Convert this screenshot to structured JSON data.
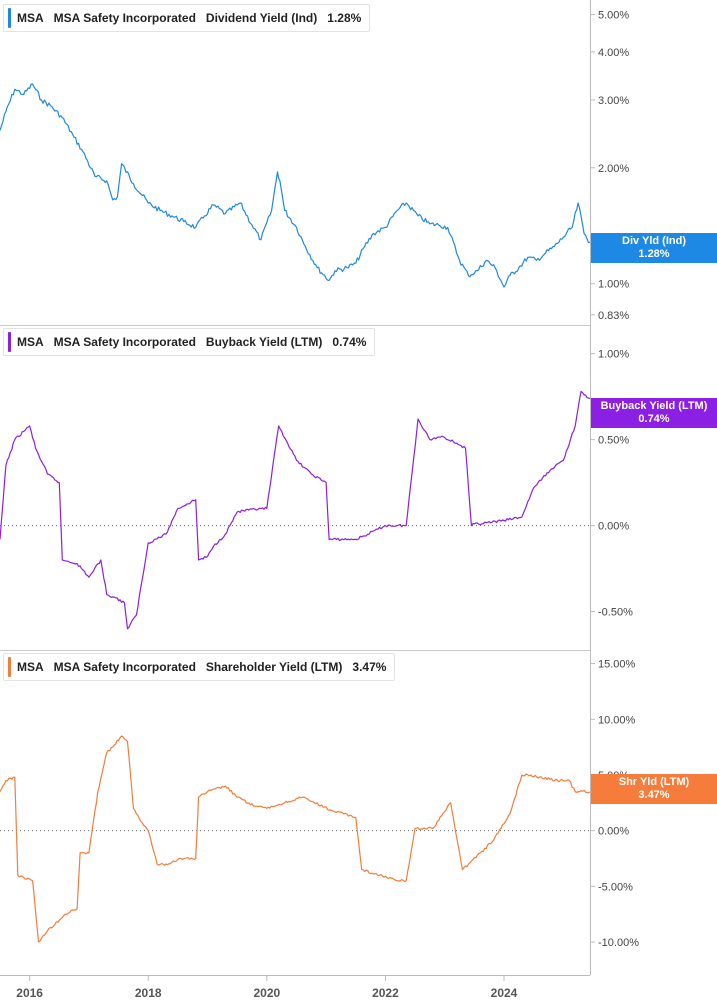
{
  "chart_data": [
    {
      "type": "line",
      "scale": "log",
      "ticker": "MSA",
      "company": "MSA Safety Incorporated",
      "metric": "Dividend Yield (Ind)",
      "latest": "1.28%",
      "tag_label": "Div Yld (Ind)",
      "tag_value": "1.28%",
      "color": "#1e88e5",
      "ylim": [
        0.8,
        5.2
      ],
      "yticks": [
        0.83,
        1.0,
        2.0,
        3.0,
        4.0,
        5.0
      ],
      "ytick_labels": [
        "0.83%",
        "1.00%",
        "2.00%",
        "3.00%",
        "4.00%",
        "5.00%"
      ],
      "x": [
        2015.5,
        2015.6,
        2015.75,
        2015.9,
        2016.05,
        2016.2,
        2016.35,
        2016.55,
        2016.75,
        2016.9,
        2017.1,
        2017.3,
        2017.4,
        2017.48,
        2017.55,
        2017.75,
        2018.0,
        2018.2,
        2018.4,
        2018.6,
        2018.8,
        2018.95,
        2019.1,
        2019.3,
        2019.55,
        2019.75,
        2019.9,
        2020.08,
        2020.18,
        2020.22,
        2020.3,
        2020.5,
        2020.65,
        2020.85,
        2021.05,
        2021.15,
        2021.35,
        2021.5,
        2021.65,
        2021.8,
        2022.0,
        2022.2,
        2022.35,
        2022.55,
        2022.75,
        2022.9,
        2023.05,
        2023.25,
        2023.4,
        2023.55,
        2023.7,
        2023.85,
        2024.0,
        2024.1,
        2024.25,
        2024.4,
        2024.55,
        2024.7,
        2024.85,
        2025.0,
        2025.15,
        2025.25,
        2025.35,
        2025.45
      ],
      "y": [
        2.5,
        2.8,
        3.2,
        3.1,
        3.3,
        3.0,
        2.9,
        2.7,
        2.4,
        2.2,
        1.9,
        1.85,
        1.65,
        1.68,
        2.05,
        1.82,
        1.62,
        1.55,
        1.5,
        1.45,
        1.4,
        1.5,
        1.6,
        1.52,
        1.62,
        1.42,
        1.3,
        1.55,
        1.95,
        1.85,
        1.55,
        1.4,
        1.25,
        1.1,
        1.02,
        1.08,
        1.1,
        1.13,
        1.25,
        1.35,
        1.4,
        1.55,
        1.62,
        1.5,
        1.43,
        1.42,
        1.4,
        1.15,
        1.05,
        1.08,
        1.15,
        1.1,
        0.98,
        1.05,
        1.1,
        1.17,
        1.15,
        1.2,
        1.25,
        1.32,
        1.4,
        1.62,
        1.35,
        1.28
      ]
    },
    {
      "type": "line",
      "scale": "linear",
      "ticker": "MSA",
      "company": "MSA Safety Incorporated",
      "metric": "Buyback Yield (LTM)",
      "latest": "0.74%",
      "tag_label": "Buyback Yield (LTM)",
      "tag_value": "0.74%",
      "color": "#8b1fe3",
      "ylim": [
        -0.7,
        1.12
      ],
      "yticks": [
        -0.5,
        0.0,
        0.5,
        1.0
      ],
      "ytick_labels": [
        "-0.50%",
        "0.00%",
        "0.50%",
        "1.00%"
      ],
      "zero_line": true,
      "x": [
        2015.5,
        2015.6,
        2015.75,
        2016.0,
        2016.1,
        2016.3,
        2016.5,
        2016.55,
        2016.8,
        2017.0,
        2017.2,
        2017.3,
        2017.45,
        2017.6,
        2017.65,
        2017.8,
        2018.0,
        2018.3,
        2018.5,
        2018.8,
        2018.85,
        2019.0,
        2019.1,
        2019.3,
        2019.5,
        2019.7,
        2020.0,
        2020.2,
        2020.35,
        2020.5,
        2020.75,
        2021.0,
        2021.05,
        2021.5,
        2021.7,
        2022.0,
        2022.35,
        2022.55,
        2022.75,
        2022.95,
        2023.2,
        2023.35,
        2023.45,
        2023.5,
        2023.8,
        2024.0,
        2024.3,
        2024.5,
        2024.8,
        2025.0,
        2025.2,
        2025.3,
        2025.35,
        2025.45
      ],
      "y": [
        -0.08,
        0.35,
        0.5,
        0.58,
        0.45,
        0.3,
        0.25,
        -0.2,
        -0.22,
        -0.3,
        -0.2,
        -0.4,
        -0.42,
        -0.45,
        -0.6,
        -0.52,
        -0.1,
        -0.05,
        0.1,
        0.15,
        -0.2,
        -0.18,
        -0.12,
        -0.05,
        0.08,
        0.09,
        0.1,
        0.58,
        0.48,
        0.38,
        0.3,
        0.25,
        -0.08,
        -0.08,
        -0.05,
        0.0,
        0.0,
        0.62,
        0.5,
        0.52,
        0.48,
        0.45,
        0.0,
        0.01,
        0.02,
        0.03,
        0.05,
        0.22,
        0.33,
        0.38,
        0.58,
        0.78,
        0.76,
        0.74
      ]
    },
    {
      "type": "line",
      "scale": "linear",
      "ticker": "MSA",
      "company": "MSA Safety Incorporated",
      "metric": "Shareholder Yield (LTM)",
      "latest": "3.47%",
      "tag_label": "Shr Yld (LTM)",
      "tag_value": "3.47%",
      "color": "#f57c3a",
      "ylim": [
        -12.6,
        15.5
      ],
      "yticks": [
        -10,
        -5,
        0,
        5,
        10,
        15
      ],
      "ytick_labels": [
        "-10.00%",
        "-5.00%",
        "0.00%",
        "5.00%",
        "10.00%",
        "15.00%"
      ],
      "zero_line": true,
      "x": [
        2015.5,
        2015.6,
        2015.75,
        2015.8,
        2016.05,
        2016.15,
        2016.3,
        2016.6,
        2016.8,
        2016.85,
        2017.0,
        2017.15,
        2017.3,
        2017.4,
        2017.55,
        2017.65,
        2017.75,
        2017.8,
        2018.0,
        2018.15,
        2018.3,
        2018.55,
        2018.8,
        2018.85,
        2019.0,
        2019.3,
        2019.5,
        2019.8,
        2020.0,
        2020.3,
        2020.6,
        2020.8,
        2021.1,
        2021.3,
        2021.5,
        2021.6,
        2021.9,
        2022.2,
        2022.35,
        2022.5,
        2022.8,
        2023.1,
        2023.3,
        2023.4,
        2023.6,
        2023.8,
        2024.1,
        2024.3,
        2024.45,
        2024.6,
        2024.9,
        2025.1,
        2025.2,
        2025.3,
        2025.45
      ],
      "y": [
        3.5,
        4.5,
        4.8,
        -4.0,
        -4.5,
        -10.0,
        -9.0,
        -7.5,
        -7.0,
        -2.0,
        -2.0,
        3.5,
        7.0,
        7.5,
        8.5,
        8.0,
        2.0,
        1.5,
        0.0,
        -3.0,
        -3.0,
        -2.5,
        -2.5,
        3.0,
        3.5,
        4.0,
        3.0,
        2.2,
        2.0,
        2.5,
        3.0,
        2.5,
        1.8,
        1.5,
        1.2,
        -3.5,
        -4.0,
        -4.5,
        -4.5,
        0.2,
        0.2,
        2.5,
        -3.5,
        -3.0,
        -2.0,
        -1.0,
        1.5,
        5.0,
        5.0,
        4.8,
        4.5,
        4.5,
        3.5,
        3.6,
        3.47
      ]
    }
  ],
  "x_axis": {
    "range": [
      2015.5,
      2025.45
    ],
    "ticks": [
      2016,
      2018,
      2020,
      2022,
      2024
    ],
    "tick_labels": [
      "2016",
      "2018",
      "2020",
      "2022",
      "2024"
    ]
  }
}
